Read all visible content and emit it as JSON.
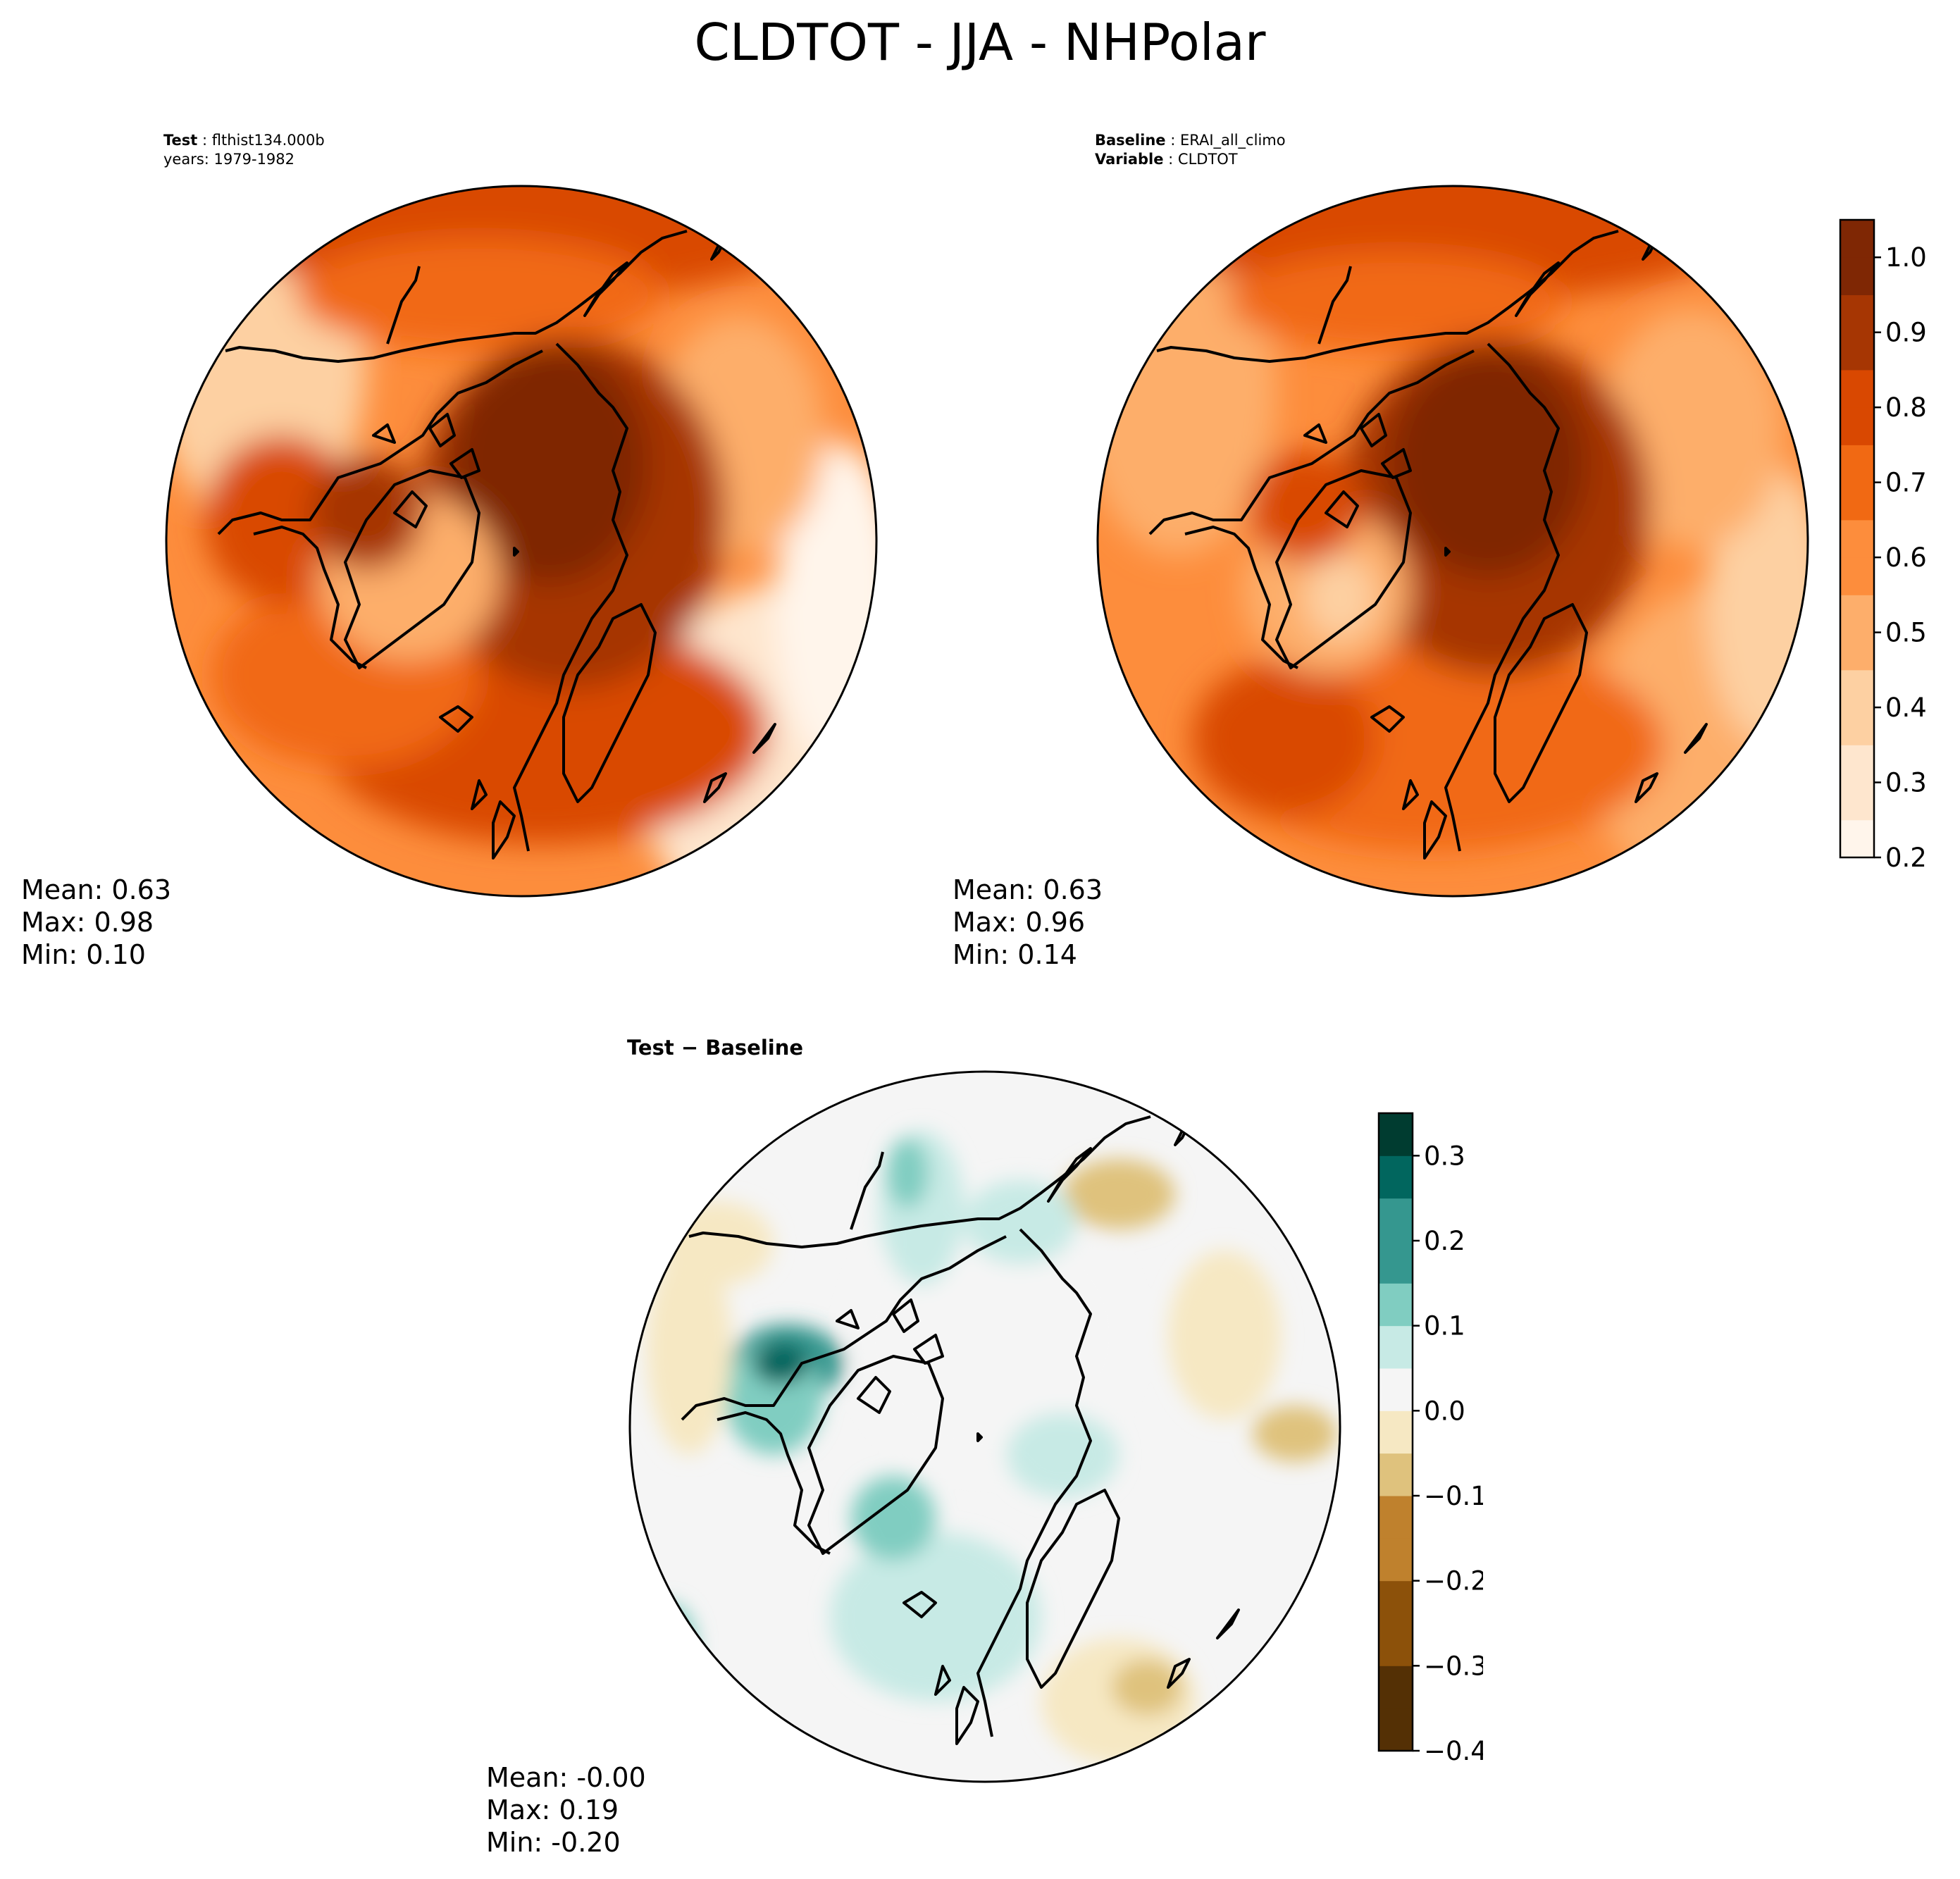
{
  "title": "CLDTOT - JJA - NHPolar",
  "colors": {
    "seq": [
      "#fff5eb",
      "#fee6ce",
      "#fdd0a2",
      "#fdae6b",
      "#fd8d3c",
      "#f16913",
      "#d94801",
      "#a63603",
      "#7f2704"
    ],
    "div_neg": [
      "#543005",
      "#8c510a",
      "#bf812d",
      "#dfc27d",
      "#f6e8c3"
    ],
    "div_zero": "#f5f5f5",
    "div_pos": [
      "#c7eae5",
      "#80cdc1",
      "#35978f",
      "#01665e",
      "#003c30"
    ]
  },
  "panels": {
    "test": {
      "header_bold": "Test",
      "header_value": "flthist134.000b",
      "header_line2": "years: 1979-1982",
      "mean": "Mean:  0.63",
      "max": "Max:  0.98",
      "min": "Min:  0.10"
    },
    "baseline": {
      "header_bold": "Baseline",
      "header_value": "ERAI_all_climo",
      "header_line2_bold": "Variable",
      "header_line2_value": "CLDTOT",
      "mean": "Mean:  0.63",
      "max": "Max:  0.96",
      "min": "Min:  0.14"
    },
    "diff": {
      "header": "Test − Baseline",
      "mean": "Mean: -0.00",
      "max": "Max:  0.19",
      "min": "Min: -0.20"
    }
  },
  "chart_data": [
    {
      "type": "heatmap",
      "name": "Test",
      "projection": "north-polar-stereographic",
      "colorbar": {
        "min": 0.2,
        "max": 1.05,
        "ticks": [
          "0.2",
          "0.3",
          "0.4",
          "0.5",
          "0.6",
          "0.7",
          "0.8",
          "0.9",
          "1.0"
        ]
      },
      "stats": {
        "mean": 0.63,
        "max": 0.98,
        "min": 0.1
      }
    },
    {
      "type": "heatmap",
      "name": "Baseline",
      "projection": "north-polar-stereographic",
      "colorbar": {
        "min": 0.2,
        "max": 1.05,
        "ticks": [
          "0.2",
          "0.3",
          "0.4",
          "0.5",
          "0.6",
          "0.7",
          "0.8",
          "0.9",
          "1.0"
        ]
      },
      "stats": {
        "mean": 0.63,
        "max": 0.96,
        "min": 0.14
      }
    },
    {
      "type": "heatmap",
      "name": "Test - Baseline",
      "projection": "north-polar-stereographic",
      "colorbar": {
        "min": -0.4,
        "max": 0.35,
        "ticks": [
          "−0.4",
          "−0.3",
          "−0.2",
          "−0.1",
          "0.0",
          "0.1",
          "0.2",
          "0.3"
        ]
      },
      "stats": {
        "mean": -0.0,
        "max": 0.19,
        "min": -0.2
      }
    }
  ]
}
